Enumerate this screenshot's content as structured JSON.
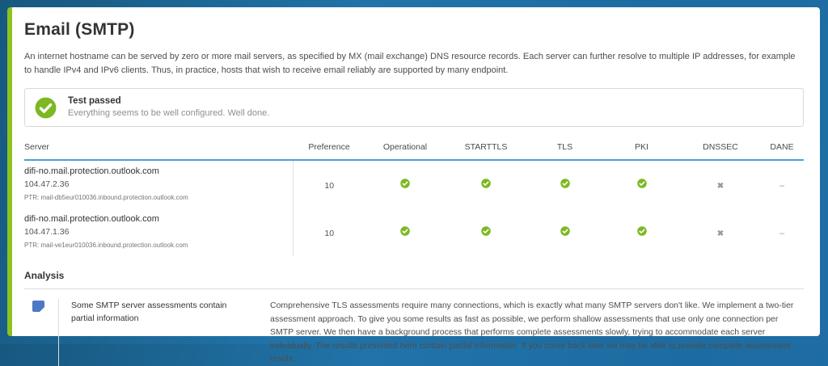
{
  "page": {
    "title": "Email (SMTP)",
    "description": "An internet hostname can be served by zero or more mail servers, as specified by MX (mail exchange) DNS resource records. Each server can further resolve to multiple IP addresses, for example to handle IPv4 and IPv6 clients. Thus, in practice, hosts that wish to receive email reliably are supported by many endpoint."
  },
  "banner": {
    "icon": "check-circle-icon",
    "title": "Test passed",
    "subtitle": "Everything seems to be well configured. Well done."
  },
  "table": {
    "columns": [
      "Server",
      "Preference",
      "Operational",
      "STARTTLS",
      "TLS",
      "PKI",
      "DNSSEC",
      "DANE"
    ],
    "rows": [
      {
        "hostname": "difi-no.mail.protection.outlook.com",
        "ip": "104.47.2.36",
        "ptr": "PTR: mail-db5eur010036.inbound.protection.outlook.com",
        "preference": "10",
        "statuses": {
          "operational": "pass",
          "starttls": "pass",
          "tls": "pass",
          "pki": "pass",
          "dnssec": "cross",
          "dane": "dash"
        }
      },
      {
        "hostname": "difi-no.mail.protection.outlook.com",
        "ip": "104.47.1.36",
        "ptr": "PTR: mail-ve1eur010036.inbound.protection.outlook.com",
        "preference": "10",
        "statuses": {
          "operational": "pass",
          "starttls": "pass",
          "tls": "pass",
          "pki": "pass",
          "dnssec": "cross",
          "dane": "dash"
        }
      }
    ]
  },
  "analysis": {
    "heading": "Analysis",
    "items": [
      {
        "icon": "note-icon",
        "title": "Some SMTP server assessments contain partial information",
        "body": "Comprehensive TLS assessments require many connections, which is exactly what many SMTP servers don't like. We implement a two-tier assessment approach. To give you some results as fast as possible, we perform shallow assessments that use only one connection per SMTP server. We then have a background process that performs complete assessments slowly, trying to accommodate each server individually. The results presented here contain partial information. If you come back later we may be able to provide complete assessment resuls."
      }
    ]
  },
  "icons": {
    "pass": "check-circle-icon",
    "cross": "x-icon",
    "dash": "dash-icon"
  },
  "colors": {
    "frame_blue": "#1f6da4",
    "stripe_green": "#8dc21f",
    "check_green": "#7cb821",
    "header_rule_blue": "#45a3dd",
    "note_blue": "#4d78c6",
    "cross_gray": "#9b9b9b"
  }
}
